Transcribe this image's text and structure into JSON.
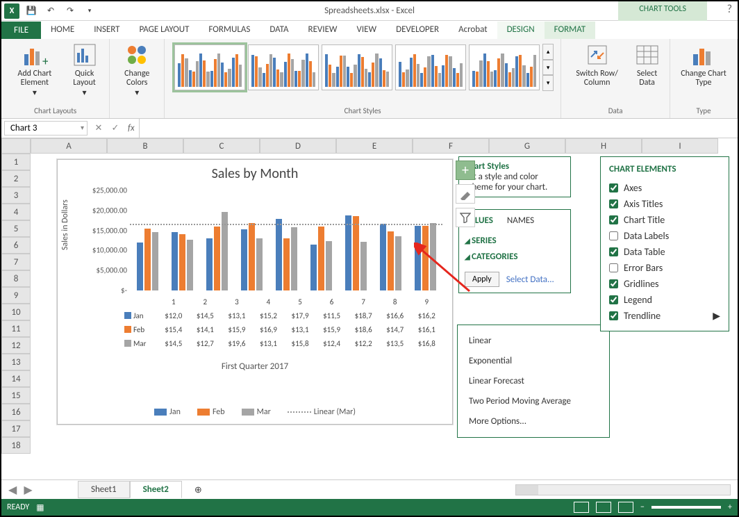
{
  "title": "Spreadsheets.xlsx - Excel",
  "chart_tools": "CHART TOOLS",
  "tabs": [
    "FILE",
    "HOME",
    "INSERT",
    "PAGE LAYOUT",
    "FORMULAS",
    "DATA",
    "REVIEW",
    "VIEW",
    "DEVELOPER",
    "Acrobat",
    "DESIGN",
    "FORMAT"
  ],
  "ribbon": {
    "layouts_label": "Chart Layouts",
    "add_element": "Add Chart Element",
    "quick_layout": "Quick Layout",
    "change_colors": "Change Colors",
    "styles_label": "Chart Styles",
    "switch": "Switch Row/ Column",
    "select_data": "Select Data",
    "data_label": "Data",
    "change_type": "Change Chart Type",
    "type_label": "Type"
  },
  "namebox": "Chart 3",
  "fx": "fx",
  "columns": [
    "A",
    "B",
    "C",
    "D",
    "E",
    "F",
    "G",
    "H",
    "I"
  ],
  "rows": [
    "1",
    "2",
    "3",
    "4",
    "5",
    "6",
    "7",
    "8",
    "9",
    "10",
    "11",
    "12",
    "13",
    "14",
    "15",
    "16",
    "17",
    "18"
  ],
  "chart": {
    "title": "Sales by Month",
    "ylabel": "Sales in Dollars",
    "xlabel": "First Quarter 2017",
    "yticks": [
      "$25,000.00",
      "$20,000.00",
      "$15,000.00",
      "$10,000.00",
      "$5,000.00",
      "$-"
    ],
    "ymax": 25000,
    "categories": [
      "1",
      "2",
      "3",
      "4",
      "5",
      "6",
      "7",
      "8",
      "9"
    ],
    "series": [
      {
        "name": "Jan",
        "color": "#4a7ebb",
        "vals": [
          12000,
          14500,
          13100,
          15200,
          17900,
          11500,
          18700,
          16600,
          16200
        ],
        "table": [
          "$12,0",
          "$14,5",
          "$13,1",
          "$15,2",
          "$17,9",
          "$11,5",
          "$18,7",
          "$16,6",
          "$16,2"
        ]
      },
      {
        "name": "Feb",
        "color": "#ed7d31",
        "vals": [
          15400,
          14100,
          15900,
          16900,
          13100,
          15900,
          18600,
          14700,
          16100
        ],
        "table": [
          "$15,4",
          "$14,1",
          "$15,9",
          "$16,9",
          "$13,1",
          "$15,9",
          "$18,6",
          "$14,7",
          "$16,1"
        ]
      },
      {
        "name": "Mar",
        "color": "#a5a5a5",
        "vals": [
          14500,
          12700,
          19600,
          13100,
          15800,
          12400,
          12200,
          13500,
          16800
        ],
        "table": [
          "$14,5",
          "$12,7",
          "$19,6",
          "$13,1",
          "$15,8",
          "$12,4",
          "$12,2",
          "$13,5",
          "$16,8"
        ]
      }
    ],
    "trend_name": "Linear (Mar)"
  },
  "fly_styles": {
    "title": "Chart Styles",
    "text": "Set a style and color scheme for your chart."
  },
  "fly_values": {
    "tab1": "VALUES",
    "tab2": "NAMES",
    "item1": "SERIES",
    "item2": "CATEGORIES",
    "apply": "Apply",
    "select": "Select Data..."
  },
  "chart_elements": {
    "title": "CHART ELEMENTS",
    "items": [
      {
        "label": "Axes",
        "checked": true
      },
      {
        "label": "Axis Titles",
        "checked": true
      },
      {
        "label": "Chart Title",
        "checked": true
      },
      {
        "label": "Data Labels",
        "checked": false
      },
      {
        "label": "Data Table",
        "checked": true
      },
      {
        "label": "Error Bars",
        "checked": false
      },
      {
        "label": "Gridlines",
        "checked": true
      },
      {
        "label": "Legend",
        "checked": true
      },
      {
        "label": "Trendline",
        "checked": true,
        "arrow": true
      }
    ]
  },
  "trend_menu": [
    "Linear",
    "Exponential",
    "Linear Forecast",
    "Two Period Moving Average",
    "More Options..."
  ],
  "sheets": {
    "s1": "Sheet1",
    "s2": "Sheet2"
  },
  "status": "READY",
  "colors": {
    "green": "#217346",
    "blue": "#4a7ebb",
    "orange": "#ed7d31",
    "gray": "#a5a5a5"
  }
}
